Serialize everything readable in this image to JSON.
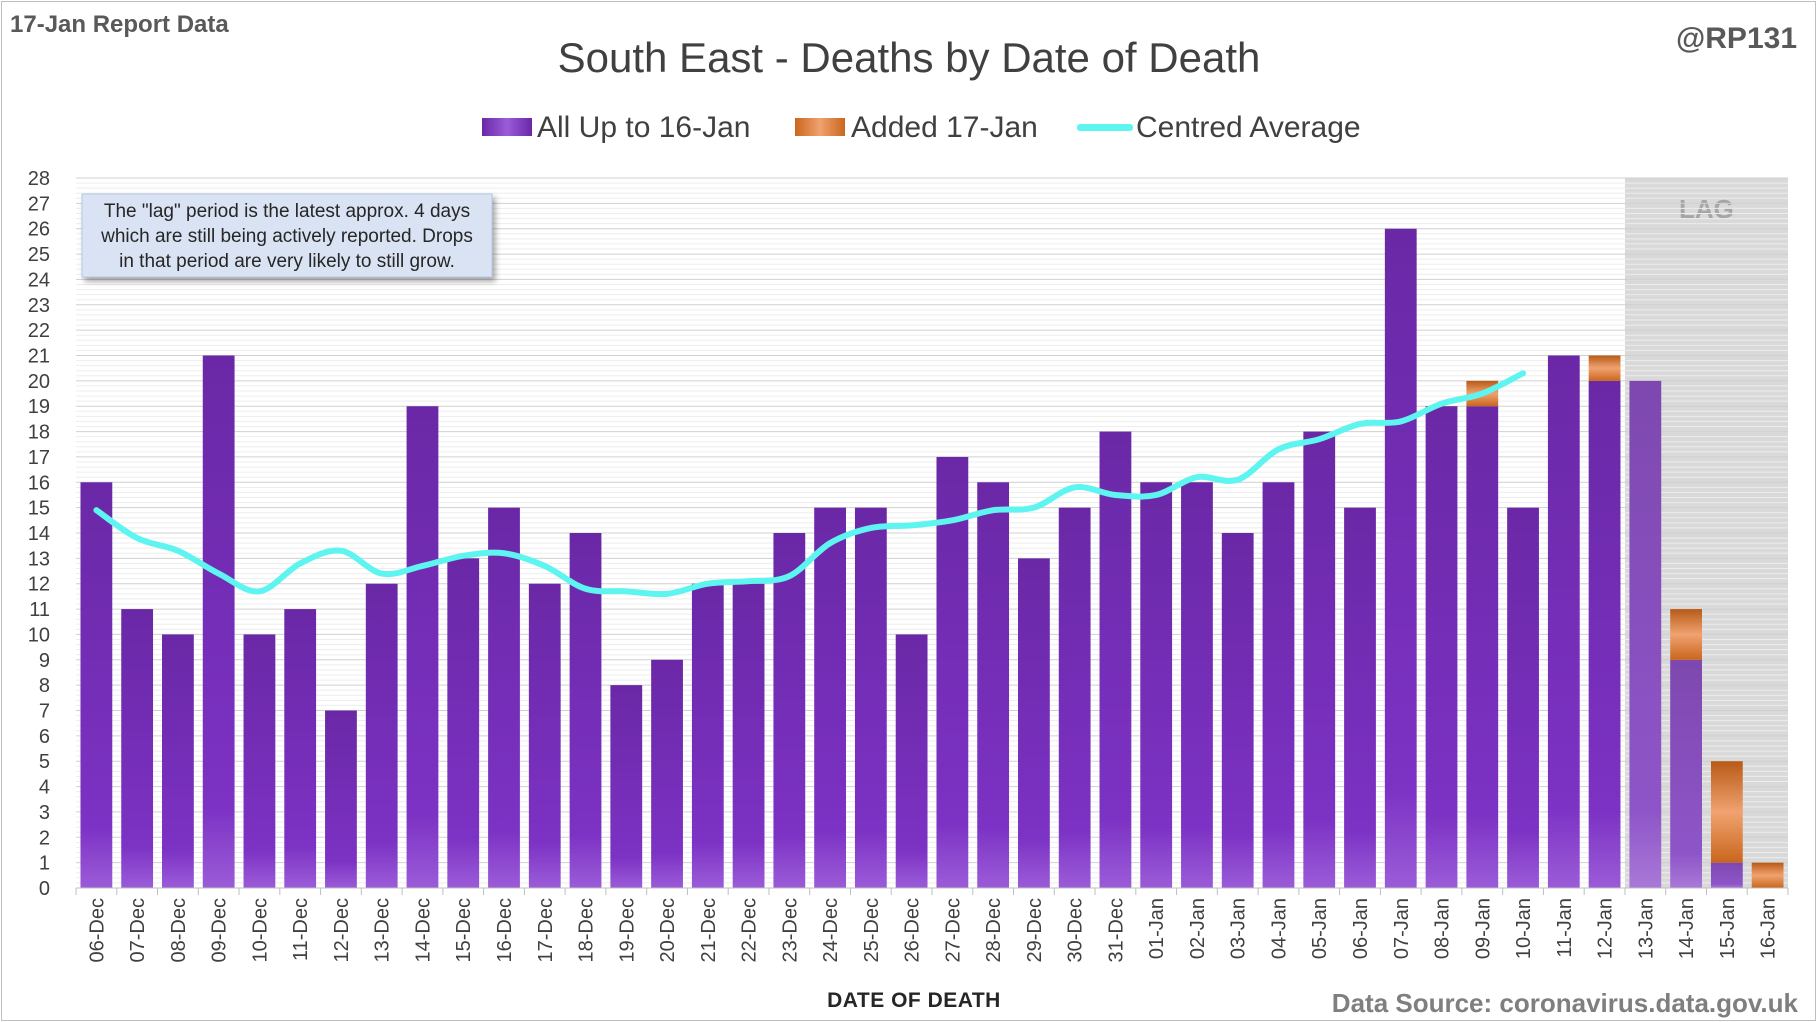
{
  "report_label": "17-Jan Report Data",
  "handle": "@RP131",
  "source": "Data Source: coronavirus.data.gov.uk",
  "lag_label": "LAG",
  "note_lines": [
    "The \"lag\" period is the latest approx. 4 days",
    "which are still being actively reported.  Drops",
    "in that period are very likely to still grow."
  ],
  "colors": {
    "bar_purple": "#7a30b8",
    "bar_orange": "#e07a2a",
    "line_cyan": "#5ef4f0",
    "lag_shade": "#d9d9d9"
  },
  "chart_data": {
    "type": "bar",
    "title": "South East - Deaths by Date of Death",
    "xlabel": "DATE OF DEATH",
    "ylabel": "",
    "ylim": [
      0,
      28
    ],
    "grid": true,
    "legend_position": "top",
    "lag_categories": [
      "13-Jan",
      "14-Jan",
      "15-Jan",
      "16-Jan"
    ],
    "categories": [
      "06-Dec",
      "07-Dec",
      "08-Dec",
      "09-Dec",
      "10-Dec",
      "11-Dec",
      "12-Dec",
      "13-Dec",
      "14-Dec",
      "15-Dec",
      "16-Dec",
      "17-Dec",
      "18-Dec",
      "19-Dec",
      "20-Dec",
      "21-Dec",
      "22-Dec",
      "23-Dec",
      "24-Dec",
      "25-Dec",
      "26-Dec",
      "27-Dec",
      "28-Dec",
      "29-Dec",
      "30-Dec",
      "31-Dec",
      "01-Jan",
      "02-Jan",
      "03-Jan",
      "04-Jan",
      "05-Jan",
      "06-Jan",
      "07-Jan",
      "08-Jan",
      "09-Jan",
      "10-Jan",
      "11-Jan",
      "12-Jan",
      "13-Jan",
      "14-Jan",
      "15-Jan",
      "16-Jan"
    ],
    "series": [
      {
        "name": "All Up to 16-Jan",
        "type": "bar",
        "values": [
          16,
          11,
          10,
          21,
          10,
          11,
          7,
          12,
          19,
          13,
          15,
          12,
          14,
          8,
          9,
          12,
          12,
          14,
          15,
          15,
          10,
          17,
          16,
          13,
          15,
          18,
          16,
          16,
          14,
          16,
          18,
          15,
          26,
          19,
          19,
          15,
          21,
          20,
          20,
          9,
          1,
          0
        ]
      },
      {
        "name": "Added 17-Jan",
        "type": "bar-stacked",
        "values": [
          0,
          0,
          0,
          0,
          0,
          0,
          0,
          0,
          0,
          0,
          0,
          0,
          0,
          0,
          0,
          0,
          0,
          0,
          0,
          0,
          0,
          0,
          0,
          0,
          0,
          0,
          0,
          0,
          0,
          0,
          0,
          0,
          0,
          0,
          1,
          0,
          0,
          1,
          0,
          2,
          4,
          1
        ]
      },
      {
        "name": "Centred Average",
        "type": "line",
        "values": [
          14.9,
          13.8,
          13.3,
          12.4,
          11.7,
          12.8,
          13.3,
          12.4,
          12.7,
          13.1,
          13.2,
          12.7,
          11.8,
          11.7,
          11.6,
          12.0,
          12.1,
          12.3,
          13.6,
          14.2,
          14.3,
          14.5,
          14.9,
          15.0,
          15.8,
          15.5,
          15.5,
          16.2,
          16.1,
          17.3,
          17.7,
          18.3,
          18.4,
          19.1,
          19.5,
          20.3,
          null,
          null,
          null,
          null,
          null,
          null
        ]
      }
    ]
  }
}
